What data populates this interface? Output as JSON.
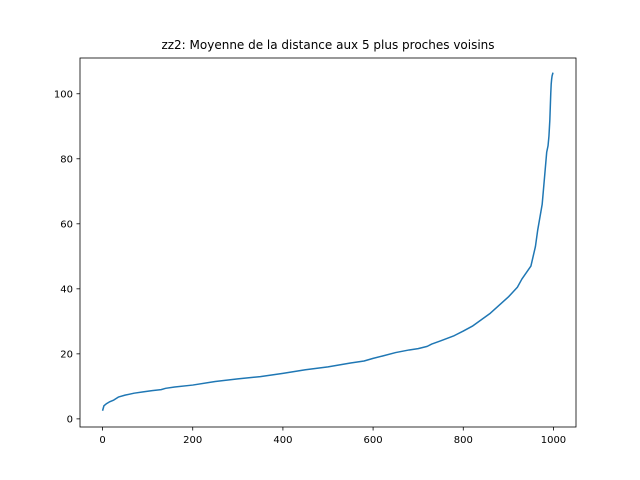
{
  "chart_data": {
    "type": "line",
    "title": "zz2: Moyenne de la distance aux 5 plus proches voisins",
    "xlabel": "",
    "ylabel": "",
    "xlim": [
      -50,
      1050
    ],
    "ylim": [
      -2.5,
      111
    ],
    "grid": false,
    "xticks": [
      0,
      200,
      400,
      600,
      800,
      1000
    ],
    "yticks": [
      0,
      20,
      40,
      60,
      80,
      100
    ],
    "line_color": "#1f77b4",
    "series": [
      {
        "x": [
          0,
          3,
          8,
          15,
          25,
          35,
          50,
          70,
          90,
          110,
          130,
          140,
          160,
          200,
          250,
          300,
          350,
          400,
          450,
          500,
          550,
          580,
          600,
          620,
          650,
          680,
          700,
          720,
          730,
          750,
          780,
          800,
          820,
          840,
          860,
          880,
          900,
          910,
          920,
          930,
          940,
          950,
          955,
          960,
          965,
          970,
          975,
          980,
          985,
          988,
          990,
          992,
          994,
          995,
          996,
          997,
          998,
          999
        ],
        "y": [
          2.5,
          4,
          4.6,
          5.2,
          5.8,
          6.7,
          7.3,
          7.9,
          8.3,
          8.7,
          9.0,
          9.4,
          9.8,
          10.4,
          11.5,
          12.3,
          13.0,
          14.0,
          15.1,
          16.0,
          17.2,
          17.8,
          18.6,
          19.3,
          20.4,
          21.2,
          21.6,
          22.3,
          23.0,
          24.0,
          25.6,
          27.0,
          28.5,
          30.5,
          32.5,
          35.0,
          37.5,
          39.0,
          40.5,
          43.0,
          45.0,
          47.0,
          50.0,
          53.0,
          58.0,
          62.0,
          66.0,
          74.0,
          82.0,
          84.0,
          87.0,
          92.0,
          100.0,
          103.0,
          104.5,
          105.5,
          106.0,
          106.5
        ]
      }
    ]
  }
}
